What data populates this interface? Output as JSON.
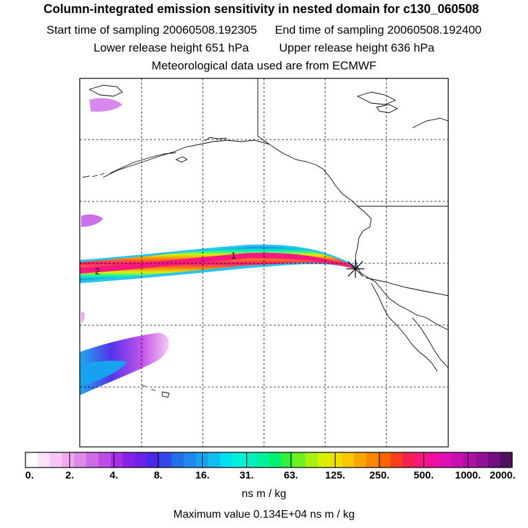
{
  "header": {
    "title": "Column-integrated emission sensitivity in nested domain for c130_060508",
    "start_label": "Start time of sampling 20060508.192305",
    "end_label": "End time of sampling 20060508.192400",
    "lower_label": "Lower release height  651 hPa",
    "upper_label": "Upper release height  636 hPa",
    "met_label": "Meteorological data used are from ECMWF"
  },
  "map": {
    "track_labels": [
      "1",
      "2"
    ],
    "release_marker": "x-marker-icon",
    "colors": {
      "frame": "#000000",
      "coast": "#000000",
      "grid": "#000000"
    }
  },
  "colorbar": {
    "ticks": [
      "0.",
      "2.",
      "4.",
      "8.",
      "16.",
      "31.",
      "63.",
      "125.",
      "250.",
      "500.",
      "1000.",
      "2000."
    ],
    "colors": [
      "#ffffff",
      "#fbe3fb",
      "#f6c6f6",
      "#efaaef",
      "#e08ae8",
      "#d06ae8",
      "#c04ae8",
      "#a82ee8",
      "#8822e8",
      "#6a22e8",
      "#4a2ae8",
      "#3248e8",
      "#2270e8",
      "#1e88ec",
      "#16a2ee",
      "#10bcf0",
      "#00e0f0",
      "#00f0e0",
      "#00f0c0",
      "#00f0a0",
      "#00f070",
      "#30f040",
      "#70f020",
      "#a8f010",
      "#d8f000",
      "#f0e000",
      "#f8c800",
      "#f8a800",
      "#f88800",
      "#f86400",
      "#f84020",
      "#f82050",
      "#f81880",
      "#f010a0",
      "#e010b0",
      "#c810b0",
      "#b010a8",
      "#901098",
      "#701080",
      "#501060"
    ],
    "units": "ns m / kg",
    "max_label": "Maximum value  0.134E+04 ns m / kg"
  }
}
